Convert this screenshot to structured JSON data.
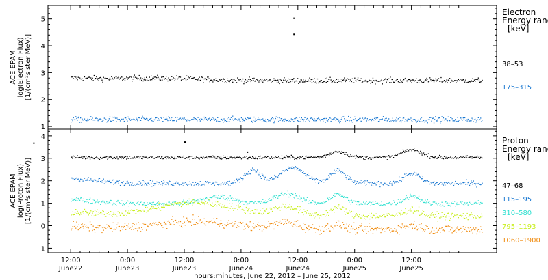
{
  "chart_data": [
    {
      "type": "scatter",
      "panel": "electron",
      "ylabel_lines": [
        "ACE EPAM",
        "log(Electron Flux)",
        "[1/(cm²s ster MeV)]"
      ],
      "ylim": [
        0.9,
        5.5
      ],
      "yticks": [
        "1",
        "2",
        "3",
        "4",
        "5"
      ],
      "legend_title_lines": [
        "Electron",
        "Energy range",
        "[keV]"
      ],
      "series": [
        {
          "name": "38–53",
          "color": "#000000",
          "baseline": 2.72,
          "noise": 0.05,
          "bumps": [
            [
              -0.3,
              0.12,
              0.35
            ],
            [
              0.4,
              0.06,
              0.6
            ],
            [
              0.9,
              0.05,
              0.5
            ]
          ],
          "outliers": [
            [
              1.96,
              5.05
            ],
            [
              1.96,
              4.45
            ]
          ]
        },
        {
          "name": "175–315",
          "color": "#1a78d1",
          "baseline": 1.27,
          "noise": 0.05,
          "bumps": [],
          "outliers": []
        }
      ]
    },
    {
      "type": "scatter",
      "panel": "proton",
      "ylabel_lines": [
        "ACE EPAM",
        "log(Proton Flux)",
        "[1/(cm²s ster MeV)]"
      ],
      "ylim": [
        -1.2,
        4.3
      ],
      "yticks": [
        "-1",
        "0",
        "1",
        "2",
        "3",
        "4"
      ],
      "legend_title_lines": [
        "Proton",
        "Energy range",
        "[keV]"
      ],
      "series": [
        {
          "name": "47–68",
          "color": "#000000",
          "baseline": 3.05,
          "noise": 0.04,
          "bumps": [
            [
              -0.25,
              0.2,
              0.05
            ],
            [
              2.35,
              0.28,
              0.1
            ],
            [
              3.0,
              0.35,
              0.12
            ]
          ],
          "outliers": [
            [
              -0.33,
              3.7
            ],
            [
              1.0,
              3.75
            ],
            [
              1.55,
              3.3
            ]
          ]
        },
        {
          "name": "115–195",
          "color": "#1a78d1",
          "baseline": 1.9,
          "noise": 0.06,
          "bumps": [
            [
              -0.3,
              0.35,
              0.5
            ],
            [
              1.6,
              0.6,
              0.1
            ],
            [
              1.95,
              0.7,
              0.15
            ],
            [
              2.35,
              0.55,
              0.1
            ],
            [
              3.0,
              0.45,
              0.1
            ]
          ],
          "outliers": []
        },
        {
          "name": "310–580",
          "color": "#2ee0d0",
          "baseline": 1.0,
          "noise": 0.06,
          "bumps": [
            [
              -0.3,
              0.3,
              0.5
            ],
            [
              1.3,
              0.3,
              0.2
            ],
            [
              1.9,
              0.45,
              0.15
            ],
            [
              2.35,
              0.4,
              0.1
            ],
            [
              3.0,
              0.35,
              0.1
            ]
          ],
          "outliers": []
        },
        {
          "name": "795–1193",
          "color": "#c8ee1c",
          "baseline": 0.45,
          "noise": 0.08,
          "bumps": [
            [
              -0.3,
              0.25,
              0.5
            ],
            [
              1.1,
              0.6,
              0.5
            ],
            [
              1.9,
              0.4,
              0.15
            ],
            [
              2.35,
              0.35,
              0.1
            ],
            [
              3.0,
              0.3,
              0.1
            ]
          ],
          "outliers": []
        },
        {
          "name": "1060–1900",
          "color": "#f08c10",
          "baseline": -0.15,
          "noise": 0.1,
          "bumps": [
            [
              -0.3,
              0.2,
              0.5
            ],
            [
              1.1,
              0.35,
              0.5
            ],
            [
              1.9,
              0.3,
              0.15
            ],
            [
              2.35,
              0.2,
              0.1
            ],
            [
              3.0,
              0.2,
              0.1
            ]
          ],
          "outliers": []
        }
      ]
    }
  ],
  "x_axis": {
    "start_label": "June 22, 2012",
    "data_range_days": [
      0.0,
      3.62
    ],
    "xlim_days": [
      -0.2,
      3.75
    ],
    "ticks": [
      {
        "day": 0.0,
        "time": "12:00",
        "date": "June22"
      },
      {
        "day": 0.5,
        "time": "0:00",
        "date": "June23"
      },
      {
        "day": 1.0,
        "time": "12:00",
        "date": "June23"
      },
      {
        "day": 1.5,
        "time": "0:00",
        "date": "June24"
      },
      {
        "day": 2.0,
        "time": "12:00",
        "date": "June24"
      },
      {
        "day": 2.5,
        "time": "0:00",
        "date": "June25"
      },
      {
        "day": 3.0,
        "time": "12:00",
        "date": "June25"
      }
    ],
    "xlabel": "hours:minutes, June 22, 2012 – June 25, 2012"
  }
}
